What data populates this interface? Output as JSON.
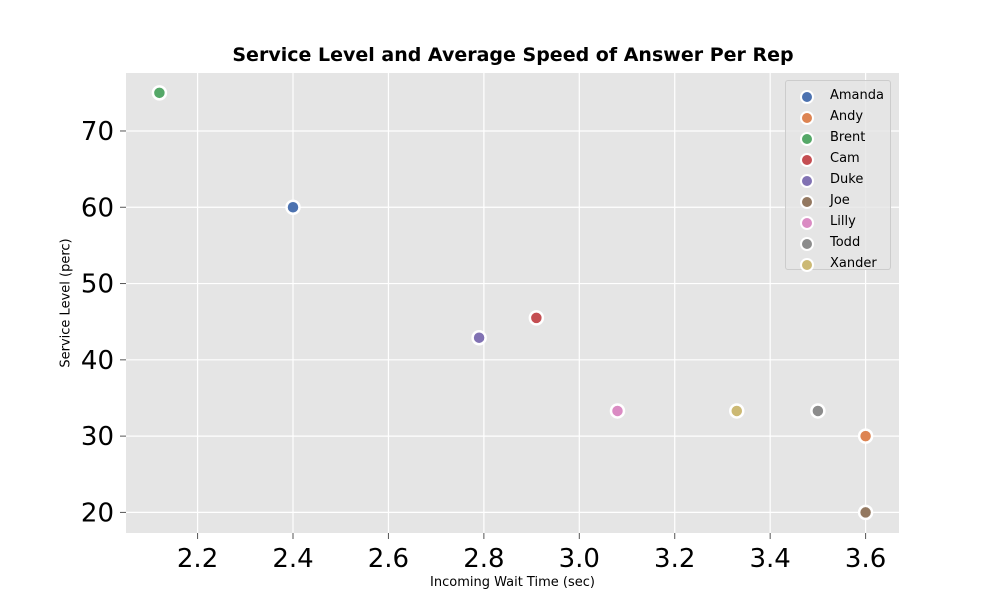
{
  "chart_data": {
    "type": "scatter",
    "title": "Service Level and Average Speed of Answer Per Rep",
    "xlabel": "Incoming Wait Time (sec)",
    "ylabel": "Service Level (perc)",
    "xlim": [
      2.05,
      3.67
    ],
    "ylim": [
      17.3,
      77.6
    ],
    "xticks": [
      2.2,
      2.4,
      2.6,
      2.8,
      3.0,
      3.2,
      3.4,
      3.6
    ],
    "yticks": [
      20,
      30,
      40,
      50,
      60,
      70
    ],
    "xtick_labels": [
      "2.2",
      "2.4",
      "2.6",
      "2.8",
      "3.0",
      "3.2",
      "3.4",
      "3.6"
    ],
    "ytick_labels": [
      "20",
      "30",
      "40",
      "50",
      "60",
      "70"
    ],
    "grid": true,
    "legend_position": "top-right",
    "series": [
      {
        "name": "Amanda",
        "color": "#4c72b0",
        "x": 2.4,
        "y": 60.0
      },
      {
        "name": "Andy",
        "color": "#dd8452",
        "x": 3.6,
        "y": 30.0
      },
      {
        "name": "Brent",
        "color": "#55a868",
        "x": 2.12,
        "y": 75.0
      },
      {
        "name": "Cam",
        "color": "#c44e52",
        "x": 2.91,
        "y": 45.5
      },
      {
        "name": "Duke",
        "color": "#8172b3",
        "x": 2.79,
        "y": 42.9
      },
      {
        "name": "Joe",
        "color": "#937860",
        "x": 3.6,
        "y": 20.0
      },
      {
        "name": "Lilly",
        "color": "#da8bc3",
        "x": 3.08,
        "y": 33.3
      },
      {
        "name": "Todd",
        "color": "#8c8c8c",
        "x": 3.5,
        "y": 33.3
      },
      {
        "name": "Xander",
        "color": "#ccb974",
        "x": 3.33,
        "y": 33.3
      }
    ]
  }
}
